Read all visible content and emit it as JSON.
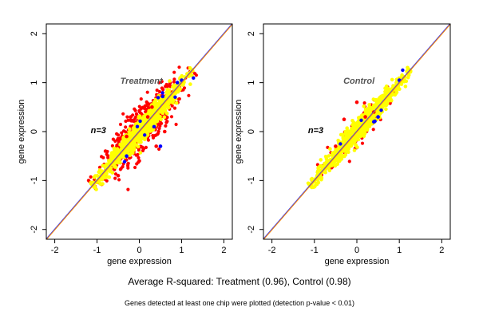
{
  "caption": "Average R-squared: Treatment (0.96), Control (0.98)",
  "footnote": "Genes detected at least one chip were plotted (detection p-value < 0.01)",
  "chart_data": [
    {
      "type": "scatter",
      "panel": "Treatment",
      "title": "Treatment",
      "annotation": "n=3",
      "xlabel": "gene expression",
      "ylabel": "gene expression",
      "xlim": [
        -2.2,
        2.2
      ],
      "ylim": [
        -2.2,
        2.2
      ],
      "xticks": [
        -2,
        -1,
        0,
        1,
        2
      ],
      "yticks": [
        -2,
        -1,
        0,
        1,
        2
      ],
      "grid": false,
      "reference_lines": [
        {
          "slope": 1,
          "intercept": 0,
          "color": "#3a3af0"
        },
        {
          "slope": 1,
          "intercept": 0,
          "color": "#ff8c00"
        }
      ],
      "point_cloud": {
        "center": [
          0.05,
          0.05
        ],
        "x_range": [
          -1.1,
          1.25
        ],
        "spread_along_diagonal": 0.5,
        "spread_across_diagonal": {
          "yellow": 0.13,
          "red": 0.3
        },
        "point_count": {
          "red": 520,
          "yellow": 950,
          "blue": 14
        }
      },
      "series": [
        {
          "color": "#ff0000",
          "x": [
            -0.8,
            -0.5,
            -0.3,
            0.0,
            0.2,
            0.4,
            0.6,
            -0.2,
            0.1,
            0.3
          ],
          "y": [
            -0.4,
            -0.9,
            -0.1,
            -0.6,
            0.3,
            -0.3,
            0.0,
            0.3,
            -0.35,
            0.5
          ]
        },
        {
          "color": "#ffff00",
          "x": [
            -1.0,
            -0.5,
            0.0,
            0.5,
            1.0,
            1.2
          ],
          "y": [
            -1.0,
            -0.5,
            0.0,
            0.5,
            1.0,
            1.2
          ]
        },
        {
          "color": "#0000ff",
          "x": [
            0.35,
            0.5,
            0.9,
            1.0,
            -0.3
          ],
          "y": [
            0.1,
            -0.3,
            1.0,
            1.05,
            -0.5
          ]
        }
      ]
    },
    {
      "type": "scatter",
      "panel": "Control",
      "title": "Control",
      "annotation": "n=3",
      "xlabel": "gene expression",
      "ylabel": "gene expression",
      "xlim": [
        -2.2,
        2.2
      ],
      "ylim": [
        -2.2,
        2.2
      ],
      "xticks": [
        -2,
        -1,
        0,
        1,
        2
      ],
      "yticks": [
        -2,
        -1,
        0,
        1,
        2
      ],
      "grid": false,
      "reference_lines": [
        {
          "slope": 1,
          "intercept": 0,
          "color": "#3a3af0"
        },
        {
          "slope": 1,
          "intercept": 0,
          "color": "#ff8c00"
        }
      ],
      "point_cloud": {
        "center": [
          0.05,
          0.05
        ],
        "x_range": [
          -1.1,
          1.25
        ],
        "spread_along_diagonal": 0.5,
        "spread_across_diagonal": {
          "yellow": 0.12,
          "red": 0.17
        },
        "point_count": {
          "red": 140,
          "yellow": 1000,
          "blue": 8
        }
      },
      "series": [
        {
          "color": "#ff0000",
          "x": [
            -0.3,
            0.0,
            0.2,
            0.4,
            -0.5
          ],
          "y": [
            0.25,
            0.6,
            0.3,
            0.4,
            -0.3
          ]
        },
        {
          "color": "#ffff00",
          "x": [
            -1.0,
            -0.5,
            0.0,
            0.5,
            1.0,
            1.2
          ],
          "y": [
            -1.0,
            -0.5,
            0.0,
            0.5,
            1.0,
            1.2
          ]
        },
        {
          "color": "#0000ff",
          "x": [
            0.5,
            0.4,
            1.0
          ],
          "y": [
            0.3,
            0.2,
            1.05
          ]
        }
      ]
    }
  ]
}
